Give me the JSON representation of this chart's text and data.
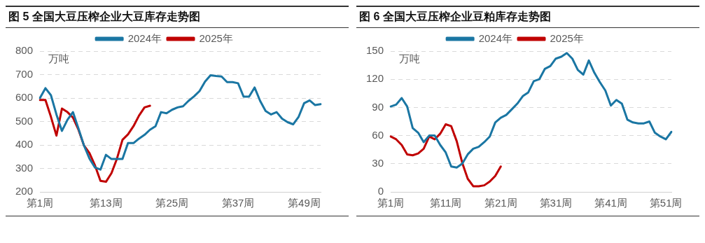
{
  "chart_data": [
    {
      "type": "line",
      "title": "图 5 全国大豆压榨企业大豆库存走势图",
      "ylabel": "万吨",
      "categories": [
        "第1周",
        null,
        null,
        null,
        null,
        null,
        null,
        null,
        null,
        null,
        null,
        null,
        "第13周",
        null,
        null,
        null,
        null,
        null,
        null,
        null,
        null,
        null,
        null,
        null,
        "第25周",
        null,
        null,
        null,
        null,
        null,
        null,
        null,
        null,
        null,
        null,
        null,
        "第37周",
        null,
        null,
        null,
        null,
        null,
        null,
        null,
        null,
        null,
        null,
        null,
        "第49周",
        null,
        null,
        null
      ],
      "series": [
        {
          "name": "2024年",
          "color": "#1a76a3",
          "values": [
            600,
            642,
            612,
            530,
            460,
            507,
            540,
            470,
            398,
            342,
            304,
            295,
            358,
            340,
            340,
            340,
            408,
            408,
            427,
            443,
            465,
            480,
            540,
            535,
            550,
            560,
            565,
            588,
            607,
            630,
            670,
            697,
            694,
            692,
            668,
            668,
            663,
            606,
            606,
            645,
            588,
            545,
            530,
            540,
            512,
            497,
            488,
            520,
            578,
            590,
            570,
            574
          ]
        },
        {
          "name": "2025年",
          "color": "#c00000",
          "values": [
            592,
            592,
            520,
            440,
            555,
            540,
            517,
            465,
            398,
            365,
            313,
            247,
            243,
            280,
            342,
            422,
            445,
            480,
            525,
            560,
            567,
            null,
            null,
            null,
            null,
            null,
            null,
            null,
            null,
            null,
            null,
            null,
            null,
            null,
            null,
            null,
            null,
            null,
            null,
            null,
            null,
            null,
            null,
            null,
            null,
            null,
            null,
            null,
            null,
            null,
            null,
            null
          ]
        }
      ],
      "ylim": [
        200,
        800
      ],
      "yticks": [
        200,
        300,
        400,
        500,
        600,
        700,
        800
      ],
      "grid": "y",
      "legend": "top",
      "line_style": "solid",
      "marker": "none"
    },
    {
      "type": "line",
      "title": "图 6 全国大豆压榨企业豆粕库存走势图",
      "ylabel": "万吨",
      "categories": [
        "第1周",
        null,
        null,
        null,
        null,
        null,
        null,
        null,
        null,
        null,
        "第11周",
        null,
        null,
        null,
        null,
        null,
        null,
        null,
        null,
        null,
        "第21周",
        null,
        null,
        null,
        null,
        null,
        null,
        null,
        null,
        null,
        "第31周",
        null,
        null,
        null,
        null,
        null,
        null,
        null,
        null,
        null,
        "第41周",
        null,
        null,
        null,
        null,
        null,
        null,
        null,
        null,
        null,
        "第51周",
        null
      ],
      "series": [
        {
          "name": "2024年",
          "color": "#1a76a3",
          "values": [
            91,
            93,
            100,
            91,
            68,
            63,
            53,
            60,
            60,
            50,
            42,
            27,
            26,
            30,
            40,
            46,
            48,
            53,
            59,
            74,
            79,
            82,
            88,
            94,
            102,
            106,
            118,
            120,
            131,
            134,
            142,
            144,
            148,
            142,
            130,
            125,
            140,
            127,
            117,
            108,
            92,
            98,
            94,
            77,
            74,
            73,
            73,
            75,
            63,
            59,
            56,
            64
          ]
        },
        {
          "name": "2025年",
          "color": "#c00000",
          "values": [
            59,
            56,
            50,
            40,
            39,
            41,
            46,
            59,
            56,
            62,
            72,
            70,
            54,
            31,
            14,
            6,
            6,
            7,
            11,
            17,
            27,
            null,
            null,
            null,
            null,
            null,
            null,
            null,
            null,
            null,
            null,
            null,
            null,
            null,
            null,
            null,
            null,
            null,
            null,
            null,
            null,
            null,
            null,
            null,
            null,
            null,
            null,
            null,
            null,
            null,
            null,
            null
          ]
        }
      ],
      "ylim": [
        0,
        150
      ],
      "yticks": [
        0,
        30,
        60,
        90,
        120,
        150
      ],
      "grid": "y",
      "legend": "top",
      "line_style": "solid",
      "marker": "none"
    }
  ]
}
